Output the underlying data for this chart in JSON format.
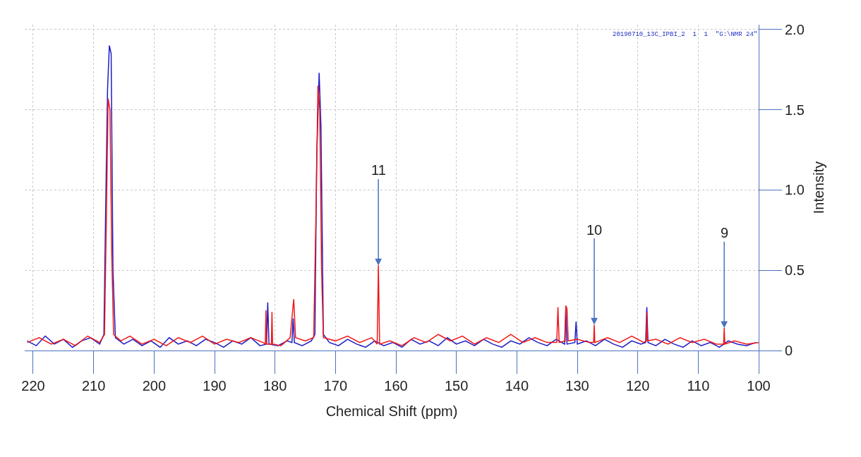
{
  "chart_data": {
    "type": "line",
    "xlabel": "Chemical Shift (ppm)",
    "ylabel": "Intensity",
    "xlim": [
      221.4,
      100
    ],
    "xticks": [
      220,
      210,
      200,
      190,
      180,
      170,
      160,
      150,
      140,
      130,
      120,
      110,
      100
    ],
    "ylim": [
      0,
      2.03
    ],
    "yticks": [
      0,
      0.5,
      {
        "value": 1,
        "label": "1.0"
      },
      1.5,
      {
        "value": 2,
        "label": "2.0"
      }
    ],
    "grid": true,
    "marker": "none",
    "line_style": "solid",
    "series": [
      {
        "color": "#1c1cc8",
        "x": [
          221,
          219.5,
          218,
          216.5,
          215,
          213.5,
          212,
          210.5,
          209,
          208.3,
          208.0,
          207.7,
          207.4,
          207.1,
          206.8,
          206.4,
          205,
          203.5,
          202,
          200.5,
          199,
          197.5,
          196,
          194.5,
          193,
          191.5,
          190,
          188.5,
          187,
          185.5,
          184,
          182.5,
          181.4,
          181.2,
          181.0,
          179.5,
          178,
          177.2,
          177.0,
          176.8,
          175.5,
          174,
          173.4,
          173.1,
          172.7,
          172.4,
          172.0,
          171,
          169.5,
          168,
          166.5,
          165,
          163.5,
          162,
          160.5,
          159,
          157.5,
          156,
          154.5,
          153,
          151.5,
          150,
          148.5,
          147,
          145.5,
          144,
          142.5,
          141,
          139.5,
          138,
          136.5,
          135,
          133.5,
          132.1,
          131.9,
          131.7,
          130.4,
          130.2,
          130.0,
          128.5,
          127,
          125.5,
          124,
          122.5,
          121,
          119.5,
          118.7,
          118.5,
          118.3,
          117,
          115.5,
          114,
          112.5,
          111,
          109.5,
          108,
          106.5,
          105,
          103.5,
          102,
          100.5
        ],
        "values": [
          0.06,
          0.03,
          0.09,
          0.04,
          0.07,
          0.02,
          0.06,
          0.08,
          0.04,
          0.1,
          0.9,
          1.62,
          1.9,
          1.85,
          0.5,
          0.08,
          0.04,
          0.07,
          0.03,
          0.06,
          0.02,
          0.08,
          0.04,
          0.06,
          0.03,
          0.07,
          0.05,
          0.02,
          0.06,
          0.04,
          0.08,
          0.03,
          0.04,
          0.3,
          0.04,
          0.03,
          0.06,
          0.05,
          0.2,
          0.05,
          0.03,
          0.06,
          0.1,
          1.2,
          1.73,
          1.4,
          0.1,
          0.05,
          0.03,
          0.07,
          0.04,
          0.02,
          0.06,
          0.03,
          0.05,
          0.02,
          0.07,
          0.04,
          0.06,
          0.03,
          0.08,
          0.04,
          0.06,
          0.03,
          0.07,
          0.04,
          0.02,
          0.06,
          0.04,
          0.08,
          0.05,
          0.03,
          0.07,
          0.04,
          0.26,
          0.04,
          0.05,
          0.18,
          0.04,
          0.06,
          0.03,
          0.07,
          0.04,
          0.02,
          0.06,
          0.04,
          0.05,
          0.27,
          0.05,
          0.03,
          0.07,
          0.04,
          0.02,
          0.06,
          0.03,
          0.05,
          0.02,
          0.06,
          0.04,
          0.03,
          0.05
        ]
      },
      {
        "color": "#f01818",
        "x": [
          221,
          219,
          217,
          215,
          213,
          211,
          209,
          208.2,
          207.9,
          207.6,
          207.3,
          207.0,
          206.7,
          205.5,
          204,
          202,
          200,
          198,
          196,
          194,
          192,
          190,
          188,
          186,
          184,
          182,
          181.6,
          181.5,
          181.4,
          180.6,
          180.5,
          180.4,
          179,
          177.5,
          176.9,
          176.6,
          175,
          173.6,
          173.2,
          172.9,
          172.6,
          172.3,
          172,
          170,
          168,
          166,
          164,
          163.1,
          162.9,
          162.7,
          161,
          159,
          157,
          155,
          153,
          151,
          149,
          147,
          145,
          143,
          141,
          139,
          137,
          135,
          133.4,
          133.2,
          133.0,
          132.0,
          131.9,
          131.7,
          131.5,
          130,
          128,
          127.3,
          127.2,
          127.1,
          125,
          123,
          121,
          119,
          118.6,
          118.5,
          118.4,
          117,
          115,
          113,
          111,
          109,
          107,
          105.8,
          105.7,
          105.6,
          104,
          102,
          100
        ],
        "values": [
          0.05,
          0.08,
          0.04,
          0.07,
          0.03,
          0.09,
          0.05,
          0.1,
          0.8,
          1.57,
          1.5,
          0.6,
          0.1,
          0.06,
          0.09,
          0.04,
          0.07,
          0.03,
          0.08,
          0.05,
          0.09,
          0.04,
          0.07,
          0.05,
          0.08,
          0.05,
          0.04,
          0.25,
          0.04,
          0.04,
          0.24,
          0.04,
          0.03,
          0.08,
          0.32,
          0.08,
          0.06,
          0.08,
          0.9,
          1.65,
          1.5,
          0.5,
          0.08,
          0.06,
          0.09,
          0.05,
          0.08,
          0.04,
          0.53,
          0.04,
          0.06,
          0.03,
          0.08,
          0.05,
          0.1,
          0.06,
          0.09,
          0.04,
          0.08,
          0.05,
          0.1,
          0.05,
          0.08,
          0.05,
          0.05,
          0.27,
          0.05,
          0.06,
          0.28,
          0.26,
          0.06,
          0.07,
          0.05,
          0.05,
          0.16,
          0.05,
          0.08,
          0.05,
          0.09,
          0.05,
          0.06,
          0.24,
          0.06,
          0.07,
          0.04,
          0.08,
          0.05,
          0.07,
          0.04,
          0.04,
          0.14,
          0.04,
          0.06,
          0.04,
          0.05
        ]
      }
    ],
    "annotations": [
      {
        "text": "11",
        "x": 162.9,
        "y": 0.53
      },
      {
        "text": "10",
        "x": 127.2,
        "y": 0.16
      },
      {
        "text": "9",
        "x": 105.7,
        "y": 0.14
      },
      "20190710_13C_IPBI_2  1  1  \"G:\\NMR 24\""
    ]
  }
}
